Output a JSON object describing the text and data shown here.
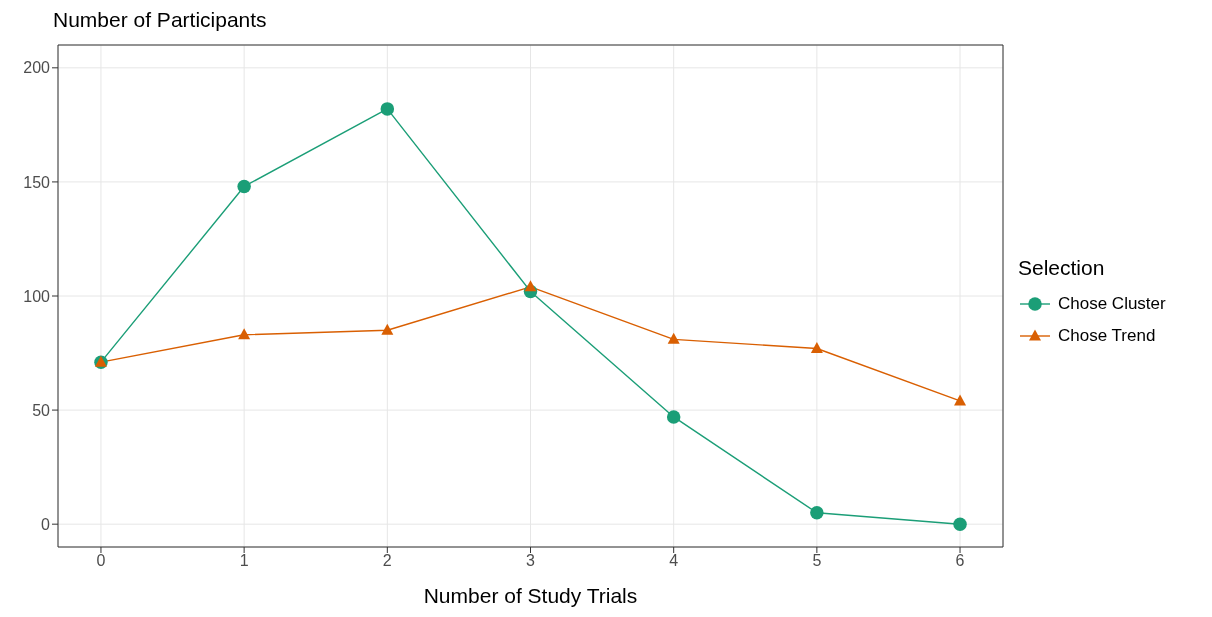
{
  "chart_data": {
    "type": "line",
    "title": "Number of Participants",
    "xlabel": "Number of Study Trials",
    "legend_title": "Selection",
    "x": [
      0,
      1,
      2,
      3,
      4,
      5,
      6
    ],
    "series": [
      {
        "name": "Chose Cluster",
        "color": "#1b9e77",
        "marker": "circle",
        "values": [
          71,
          148,
          182,
          102,
          47,
          5,
          0
        ]
      },
      {
        "name": "Chose Trend",
        "color": "#d95f02",
        "marker": "triangle",
        "values": [
          71,
          83,
          85,
          104,
          81,
          77,
          54
        ]
      }
    ],
    "xlim": [
      -0.3,
      6.3
    ],
    "xticks": [
      0,
      1,
      2,
      3,
      4,
      5,
      6
    ],
    "ylim": [
      -10,
      210
    ],
    "yticks": [
      0,
      50,
      100,
      150,
      200
    ],
    "grid": true,
    "legend": "right",
    "line_style": "solid"
  }
}
